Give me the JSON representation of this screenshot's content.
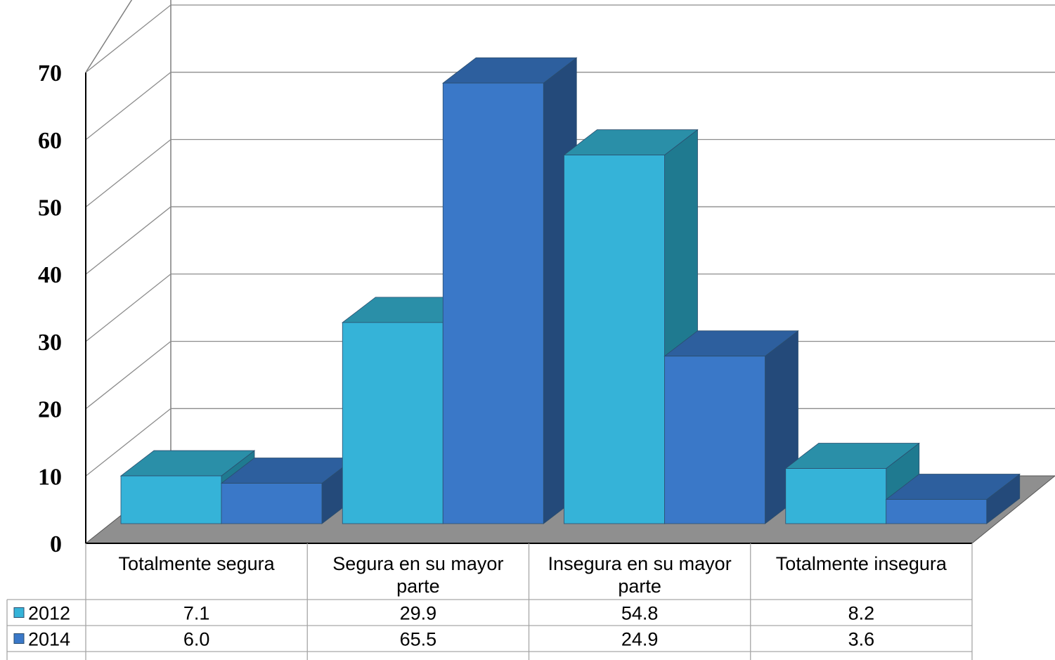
{
  "chart_data": {
    "type": "bar",
    "style": "3d-clustered-column-with-data-table",
    "categories": [
      [
        "Totalmente segura"
      ],
      [
        "Segura en su mayor",
        "parte"
      ],
      [
        "Insegura en su mayor",
        "parte"
      ],
      [
        "Totalmente insegura"
      ]
    ],
    "series": [
      {
        "name": "2012",
        "values": [
          7.1,
          29.9,
          54.8,
          8.2
        ],
        "labels": [
          "7.1",
          "29.9",
          "54.8",
          "8.2"
        ],
        "color": "#35b3d8",
        "side": "#1f7a90",
        "top": "#2a8fa8"
      },
      {
        "name": "2014",
        "values": [
          6.0,
          65.5,
          24.9,
          3.6
        ],
        "labels": [
          "6.0",
          "65.5",
          "24.9",
          "3.6"
        ],
        "color": "#3a78c8",
        "side": "#244a7a",
        "top": "#2d5f9e"
      }
    ],
    "yticks": [
      "0",
      "10",
      "20",
      "30",
      "40",
      "50",
      "60",
      "70"
    ],
    "ylim": [
      0,
      70
    ],
    "grid": true,
    "legend": "data-table"
  }
}
